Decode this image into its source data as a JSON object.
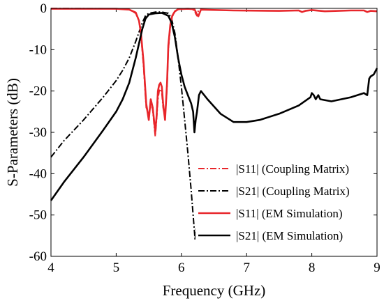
{
  "chart_data": {
    "type": "line",
    "xlabel": "Frequency (GHz)",
    "ylabel": "S-Parameters (dB)",
    "xlim": [
      4,
      9
    ],
    "ylim": [
      -60,
      0
    ],
    "xticks": [
      4,
      5,
      6,
      7,
      8,
      9
    ],
    "yticks": [
      0,
      -10,
      -20,
      -30,
      -40,
      -50,
      -60
    ],
    "grid": false,
    "legend_placement": "bottom-right",
    "series": [
      {
        "name": "|S11| (Coupling Matrix)",
        "color": "#e8262b",
        "style": "dashdot",
        "x": [
          4.0,
          5.0,
          5.2,
          5.3,
          5.35,
          5.38,
          5.42,
          5.46,
          5.5,
          5.53,
          5.56,
          5.58,
          5.6,
          5.62,
          5.64,
          5.66,
          5.68,
          5.7,
          5.72,
          5.75,
          5.78,
          5.8,
          5.83,
          5.86,
          5.9,
          5.95,
          6.05,
          6.15,
          6.2,
          6.22,
          6.24,
          6.26,
          6.3
        ],
        "y": [
          0.0,
          -0.1,
          -0.3,
          -1.2,
          -3.0,
          -6.5,
          -14.0,
          -24.0,
          -25.5,
          -23.0,
          -24.5,
          -28.0,
          -31.0,
          -27.0,
          -22.0,
          -20.0,
          -19.5,
          -20.5,
          -24.0,
          -26.5,
          -19.0,
          -10.0,
          -4.5,
          -2.0,
          -0.8,
          -0.3,
          -0.1,
          -0.2,
          -0.5,
          -1.3,
          -1.8,
          -0.6,
          -0.2
        ]
      },
      {
        "name": "|S21| (Coupling Matrix)",
        "color": "#000000",
        "style": "dashdot",
        "x": [
          4.0,
          4.2,
          4.5,
          4.8,
          5.0,
          5.1,
          5.2,
          5.3,
          5.4,
          5.45,
          5.5,
          5.6,
          5.7,
          5.8,
          5.85,
          5.9,
          5.95,
          6.0,
          6.05,
          6.1,
          6.15,
          6.18,
          6.2,
          6.21,
          6.22,
          6.24,
          6.27,
          6.3
        ],
        "y": [
          -36.0,
          -32.0,
          -27.0,
          -21.5,
          -17.5,
          -15.0,
          -12.0,
          -8.0,
          -3.5,
          -1.8,
          -1.2,
          -0.9,
          -0.9,
          -1.2,
          -2.5,
          -6.0,
          -12.0,
          -19.0,
          -27.0,
          -35.0,
          -44.0,
          -50.0,
          -54.0,
          -56.0,
          -54.0,
          -50.0,
          -47.0,
          -45.0
        ]
      },
      {
        "name": "|S11| (EM Simulation)",
        "color": "#e8262b",
        "style": "solid",
        "x": [
          4.0,
          5.0,
          5.2,
          5.3,
          5.35,
          5.38,
          5.42,
          5.46,
          5.5,
          5.53,
          5.56,
          5.58,
          5.6,
          5.62,
          5.64,
          5.66,
          5.68,
          5.7,
          5.72,
          5.75,
          5.78,
          5.8,
          5.83,
          5.86,
          5.9,
          5.95,
          6.1,
          6.2,
          6.24,
          6.26,
          6.3,
          6.8,
          7.5,
          7.8,
          7.85,
          7.9,
          8.0,
          8.2,
          8.6,
          8.8,
          8.85,
          8.9,
          9.0
        ],
        "y": [
          -0.1,
          -0.1,
          -0.3,
          -1.0,
          -3.0,
          -6.0,
          -13.0,
          -23.0,
          -27.0,
          -22.0,
          -24.0,
          -27.0,
          -30.0,
          -26.0,
          -20.0,
          -18.5,
          -18.0,
          -19.0,
          -23.0,
          -27.0,
          -18.0,
          -9.0,
          -4.0,
          -1.8,
          -0.7,
          -0.2,
          -0.1,
          -0.2,
          -1.5,
          -1.9,
          -0.3,
          -0.5,
          -0.6,
          -0.5,
          -0.9,
          -0.6,
          -0.4,
          -0.7,
          -0.5,
          -0.5,
          -0.9,
          -0.6,
          -0.7
        ]
      },
      {
        "name": "|S21| (EM Simulation)",
        "color": "#000000",
        "style": "solid",
        "x": [
          4.0,
          4.2,
          4.5,
          4.8,
          5.0,
          5.1,
          5.2,
          5.3,
          5.4,
          5.45,
          5.5,
          5.6,
          5.7,
          5.8,
          5.85,
          5.9,
          5.95,
          6.0,
          6.05,
          6.1,
          6.15,
          6.18,
          6.2,
          6.22,
          6.24,
          6.27,
          6.3,
          6.4,
          6.6,
          6.8,
          7.0,
          7.2,
          7.5,
          7.8,
          7.98,
          8.0,
          8.03,
          8.06,
          8.1,
          8.13,
          8.3,
          8.6,
          8.8,
          8.85,
          8.88,
          8.9,
          8.95,
          9.0
        ],
        "y": [
          -46.5,
          -42.0,
          -36.0,
          -29.5,
          -25.0,
          -22.0,
          -18.0,
          -12.0,
          -5.0,
          -2.5,
          -1.5,
          -1.2,
          -1.1,
          -1.8,
          -3.5,
          -7.0,
          -12.0,
          -16.0,
          -19.0,
          -21.0,
          -23.0,
          -25.0,
          -30.0,
          -27.0,
          -25.0,
          -21.0,
          -20.0,
          -22.0,
          -25.5,
          -27.5,
          -27.5,
          -27.0,
          -25.5,
          -23.5,
          -21.5,
          -20.5,
          -21.0,
          -22.0,
          -21.0,
          -22.0,
          -22.5,
          -21.5,
          -20.5,
          -21.0,
          -17.0,
          -16.5,
          -16.0,
          -14.5
        ]
      }
    ]
  }
}
